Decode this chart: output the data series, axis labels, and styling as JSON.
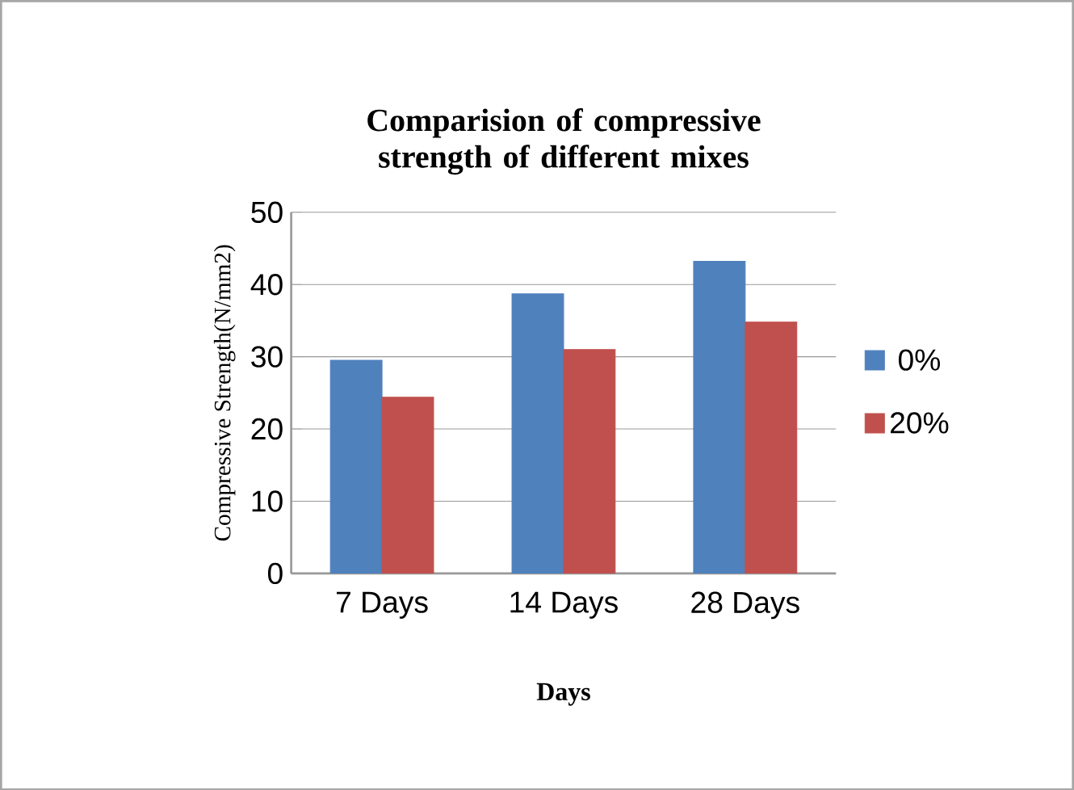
{
  "chart_data": {
    "type": "bar",
    "title": "Comparision of compressive strength of different mixes",
    "xlabel": "Days",
    "ylabel": "Compressive Strength(N/mm2)",
    "categories": [
      "7 Days",
      "14 Days",
      "28 Days"
    ],
    "series": [
      {
        "name": "0%",
        "color": "#4f81bd",
        "values": [
          29.5,
          38.7,
          43.2
        ]
      },
      {
        "name": "20%",
        "color": "#c0504d",
        "values": [
          24.4,
          31.0,
          34.8
        ]
      }
    ],
    "ylim": [
      0,
      50
    ],
    "yticks": [
      0,
      10,
      20,
      30,
      40,
      50
    ],
    "grid": "y",
    "legend": "right"
  }
}
